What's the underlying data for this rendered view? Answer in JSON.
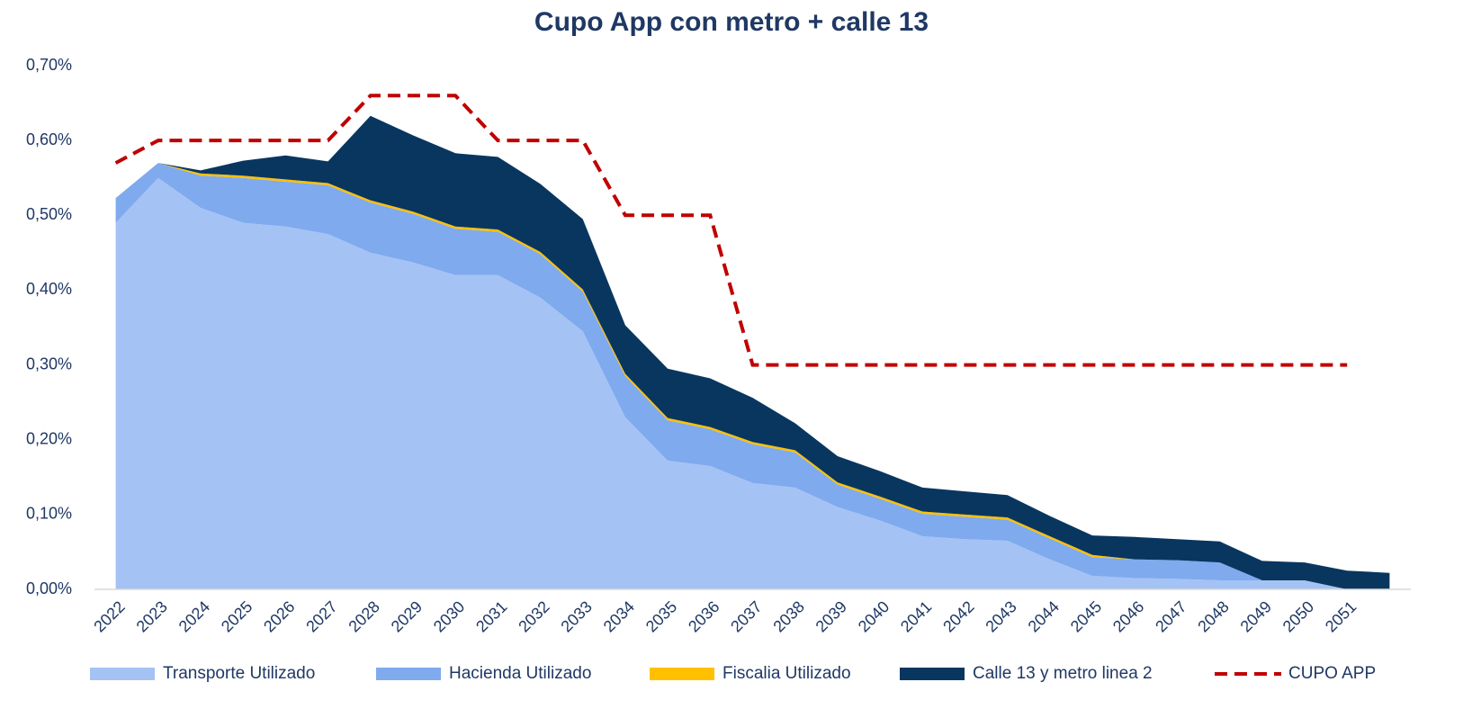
{
  "chart_data": {
    "type": "stacked_area",
    "title": "Cupo App con metro + calle 13",
    "categories": [
      "2022",
      "2023",
      "2024",
      "2025",
      "2026",
      "2027",
      "2028",
      "2029",
      "2030",
      "2031",
      "2032",
      "2033",
      "2034",
      "2035",
      "2036",
      "2037",
      "2038",
      "2039",
      "2040",
      "2041",
      "2042",
      "2043",
      "2044",
      "2045",
      "2046",
      "2047",
      "2048",
      "2049",
      "2050",
      "2051",
      null
    ],
    "series": [
      {
        "name": "Transporte Utilizado",
        "color": "#a4c2f4",
        "values": [
          0.49,
          0.55,
          0.51,
          0.49,
          0.485,
          0.475,
          0.45,
          0.437,
          0.42,
          0.42,
          0.39,
          0.345,
          0.23,
          0.172,
          0.165,
          0.142,
          0.136,
          0.11,
          0.092,
          0.071,
          0.067,
          0.065,
          0.04,
          0.018,
          0.015,
          0.014,
          0.012,
          0.012,
          0.012,
          0,
          0
        ]
      },
      {
        "name": "Hacienda Utilizado",
        "color": "#7faaee",
        "values": [
          0.033,
          0.02,
          0.043,
          0.06,
          0.06,
          0.065,
          0.067,
          0.065,
          0.062,
          0.058,
          0.058,
          0.053,
          0.055,
          0.054,
          0.049,
          0.052,
          0.047,
          0.03,
          0.029,
          0.03,
          0.03,
          0.028,
          0.028,
          0.025,
          0.025,
          0.025,
          0.024,
          0,
          0,
          0,
          0
        ]
      },
      {
        "name": "Fiscalia Utilizado",
        "color": "#ffc000",
        "values": [
          0,
          0,
          0.003,
          0.003,
          0.003,
          0.003,
          0.003,
          0.003,
          0.003,
          0.003,
          0.003,
          0.003,
          0.003,
          0.003,
          0.003,
          0.003,
          0.003,
          0.003,
          0.003,
          0.003,
          0.003,
          0.003,
          0.003,
          0.003,
          0,
          0,
          0,
          0,
          0,
          0,
          0
        ]
      },
      {
        "name": "Calle 13 y metro linea 2",
        "color": "#08365f",
        "values": [
          0,
          0,
          0.004,
          0.02,
          0.032,
          0.029,
          0.113,
          0.102,
          0.098,
          0.097,
          0.091,
          0.094,
          0.065,
          0.066,
          0.065,
          0.059,
          0.036,
          0.035,
          0.034,
          0.032,
          0.031,
          0.03,
          0.027,
          0.026,
          0.03,
          0.028,
          0.028,
          0.026,
          0.024,
          0.025,
          0.022
        ]
      }
    ],
    "lines": [
      {
        "name": "CUPO APP",
        "color": "#c00000",
        "dashed": true,
        "values": [
          0.57,
          0.6,
          0.6,
          0.6,
          0.6,
          0.6,
          0.66,
          0.66,
          0.66,
          0.6,
          0.6,
          0.6,
          0.5,
          0.5,
          0.5,
          0.3,
          0.3,
          0.3,
          0.3,
          0.3,
          0.3,
          0.3,
          0.3,
          0.3,
          0.3,
          0.3,
          0.3,
          0.3,
          0.3,
          0.3,
          null
        ]
      }
    ],
    "ylim": [
      0,
      0.7
    ],
    "yticks": [
      {
        "value": 0,
        "label": "0,00%"
      },
      {
        "value": 0.1,
        "label": "0,10%"
      },
      {
        "value": 0.2,
        "label": "0,20%"
      },
      {
        "value": 0.3,
        "label": "0,30%"
      },
      {
        "value": 0.4,
        "label": "0,40%"
      },
      {
        "value": 0.5,
        "label": "0,50%"
      },
      {
        "value": 0.6,
        "label": "0,60%"
      },
      {
        "value": 0.7,
        "label": "0,70%"
      }
    ],
    "grid": false,
    "legend": "bottom"
  }
}
